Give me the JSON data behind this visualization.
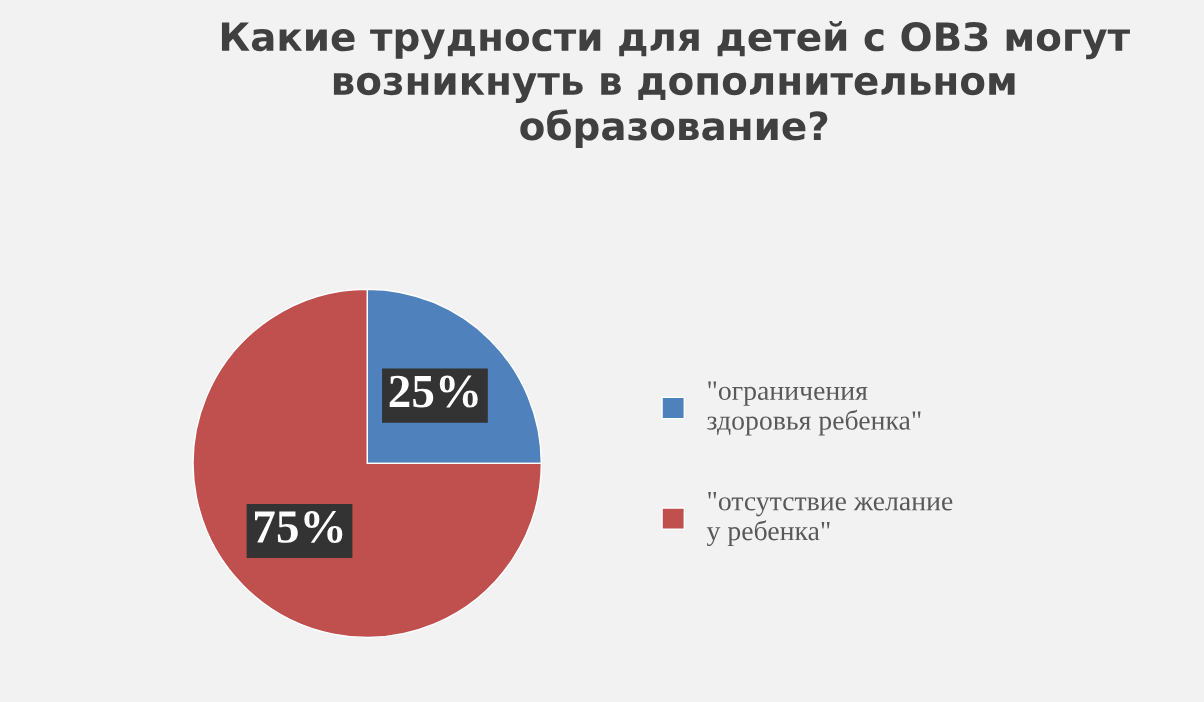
{
  "chart_data": {
    "type": "pie",
    "title": "Какие трудности для детей с ОВЗ могут\nвозникнуть в дополнительном\nобразование?",
    "categories": [
      "\"ограничения\nздоровья ребенка\"",
      "\"отсутствие желание\nу ребенка\""
    ],
    "values": [
      25,
      75
    ],
    "colors": [
      "#4f81bd",
      "#c0504d"
    ],
    "value_labels": [
      "25%",
      "75%"
    ],
    "legend": "right"
  }
}
